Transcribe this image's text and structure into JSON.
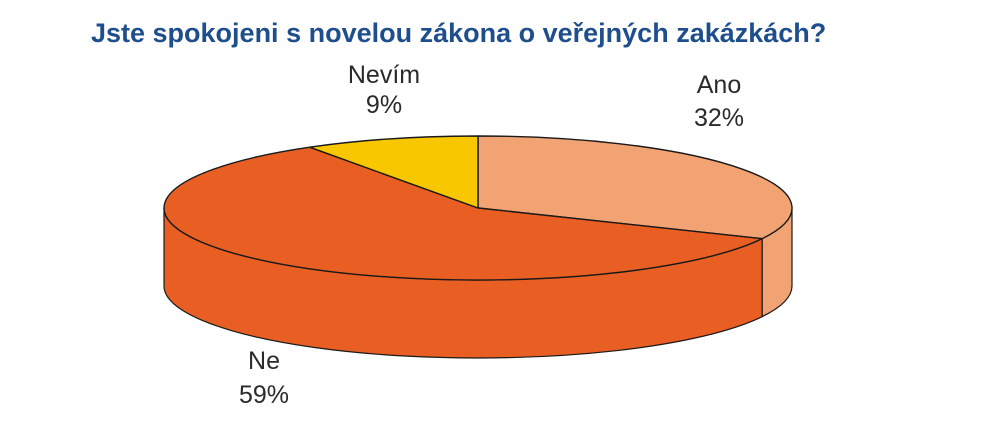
{
  "chart_data": {
    "type": "pie",
    "title": "Jste spokojeni s novelou zákona o veřejných zakázkách?",
    "slices": [
      {
        "label": "Ano",
        "percent_label": "32%",
        "value": 32,
        "top_color": "#f2a373",
        "side_color": "#f2a373"
      },
      {
        "label": "Ne",
        "percent_label": "59%",
        "value": 59,
        "top_color": "#e95f23",
        "side_color": "#e95f23"
      },
      {
        "label": "Nevím",
        "percent_label": "9%",
        "value": 9,
        "top_color": "#f9c700",
        "side_color": "#f9c700"
      }
    ],
    "style": "3d",
    "legend": "none"
  }
}
